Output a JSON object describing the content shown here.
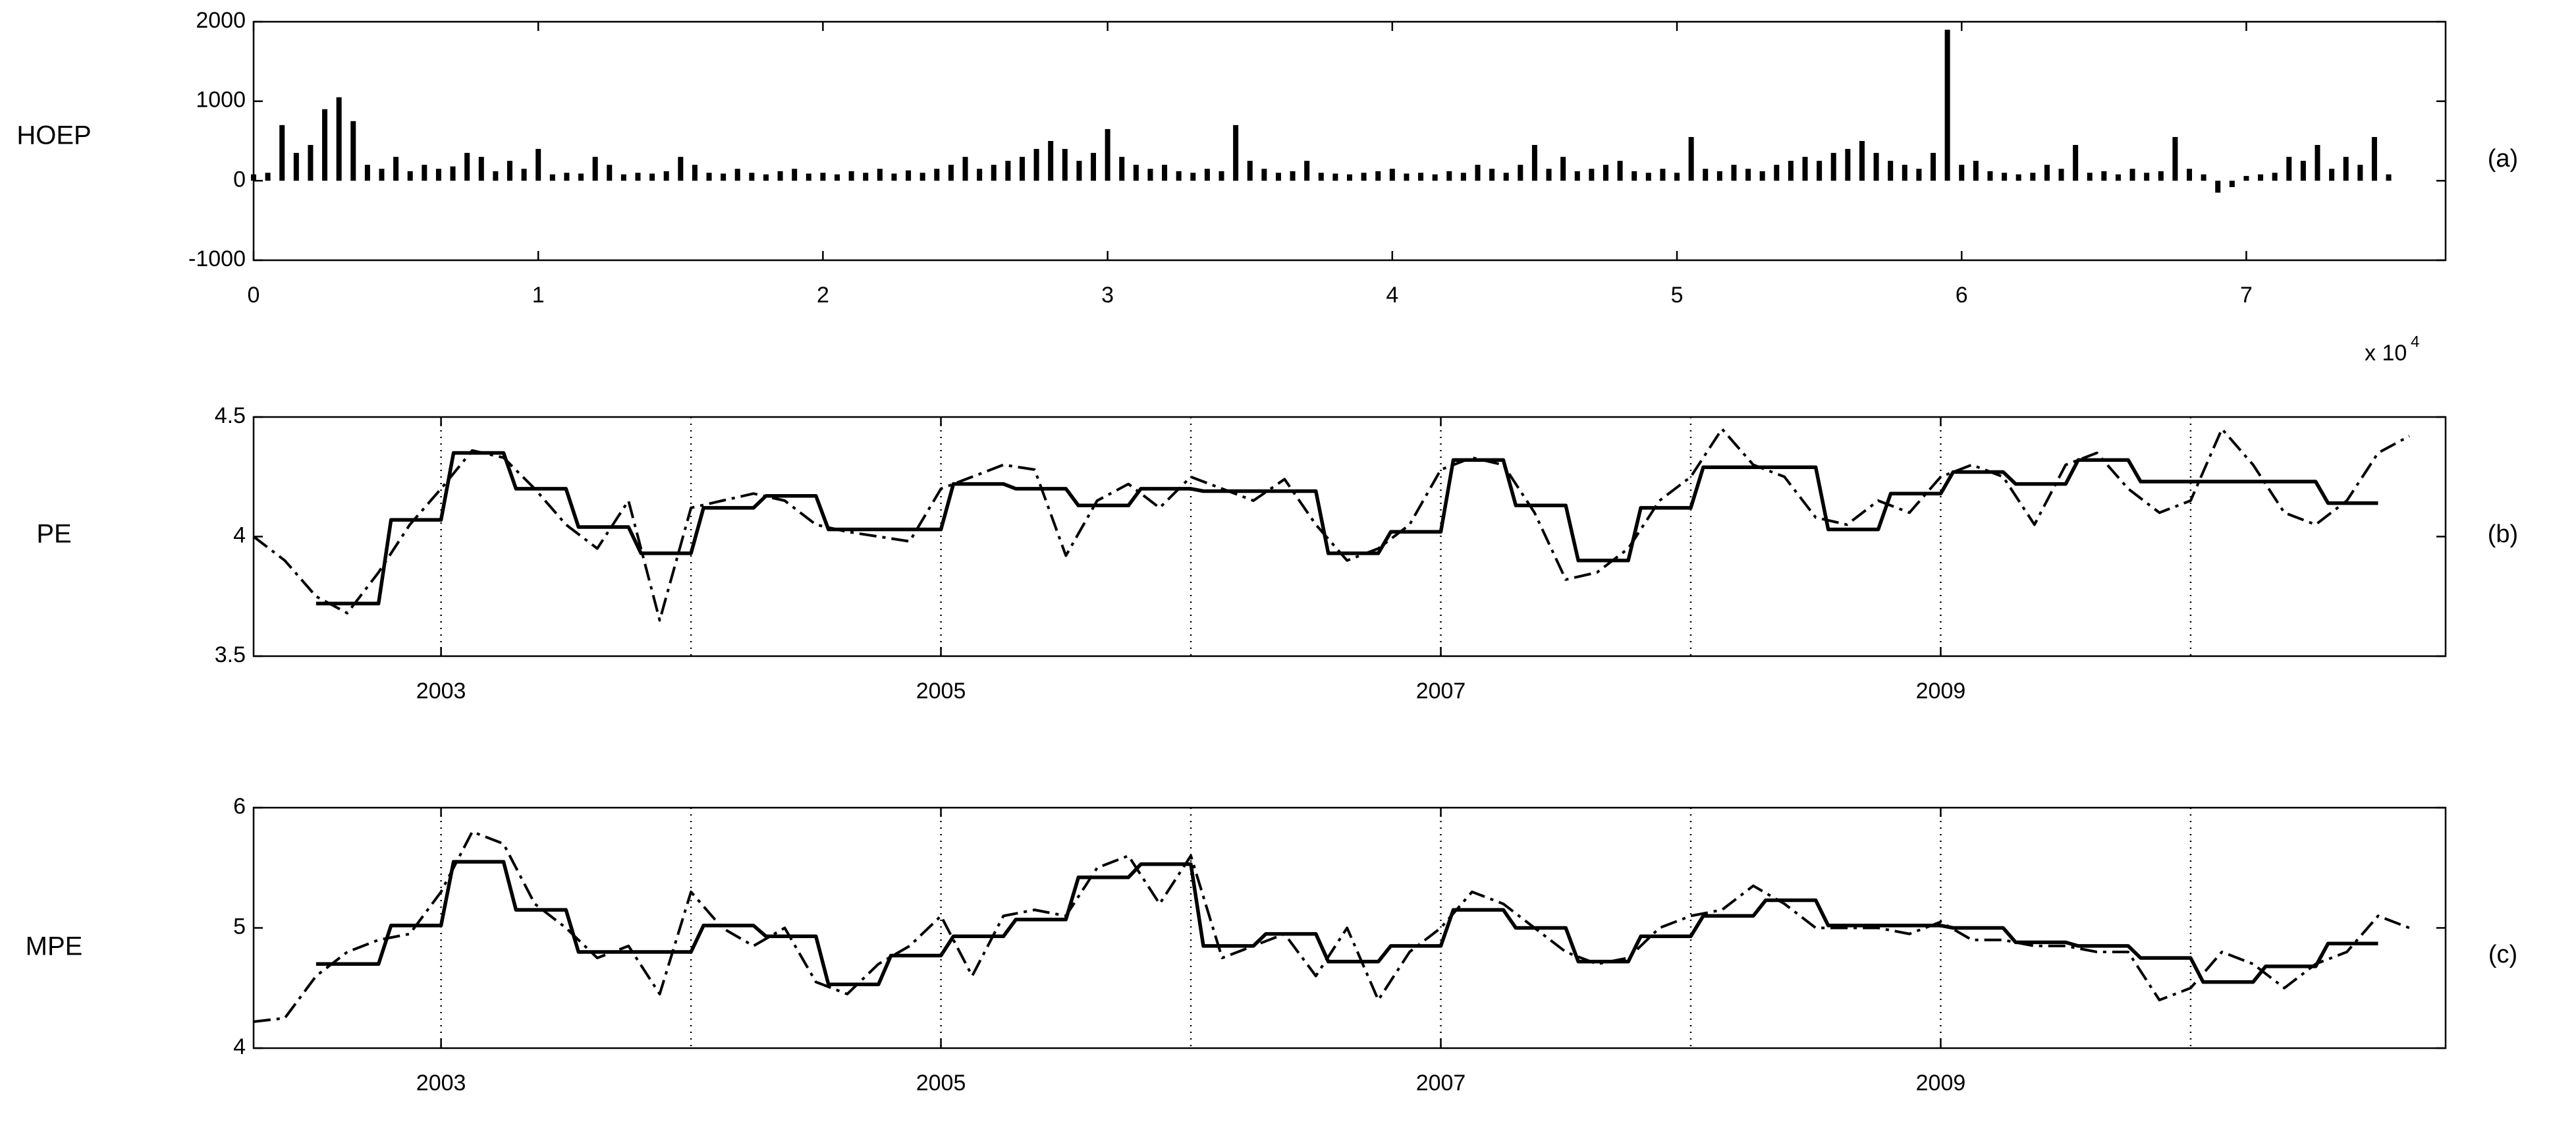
{
  "chart_data": [
    {
      "type": "bar",
      "ylabel": "HOEP",
      "tag": "(a)",
      "color": "#000000",
      "multiplier_label": "x 10",
      "multiplier_exponent": "4",
      "xlim": [
        0,
        7.7
      ],
      "xticks": [
        0,
        1,
        2,
        3,
        4,
        5,
        6,
        7
      ],
      "ylim": [
        -1000,
        2000
      ],
      "yticks": [
        -1000,
        0,
        1000,
        2000
      ],
      "x": [
        0,
        0.05,
        0.1,
        0.15,
        0.2,
        0.25,
        0.3,
        0.35,
        0.4,
        0.45,
        0.5,
        0.55,
        0.6,
        0.65,
        0.7,
        0.75,
        0.8,
        0.85,
        0.9,
        0.95,
        1.0,
        1.05,
        1.1,
        1.15,
        1.2,
        1.25,
        1.3,
        1.35,
        1.4,
        1.45,
        1.5,
        1.55,
        1.6,
        1.65,
        1.7,
        1.75,
        1.8,
        1.85,
        1.9,
        1.95,
        2.0,
        2.05,
        2.1,
        2.15,
        2.2,
        2.25,
        2.3,
        2.35,
        2.4,
        2.45,
        2.5,
        2.55,
        2.6,
        2.65,
        2.7,
        2.75,
        2.8,
        2.85,
        2.9,
        2.95,
        3.0,
        3.05,
        3.1,
        3.15,
        3.2,
        3.25,
        3.3,
        3.35,
        3.4,
        3.45,
        3.5,
        3.55,
        3.6,
        3.65,
        3.7,
        3.75,
        3.8,
        3.85,
        3.9,
        3.95,
        4.0,
        4.05,
        4.1,
        4.15,
        4.2,
        4.25,
        4.3,
        4.35,
        4.4,
        4.45,
        4.5,
        4.55,
        4.6,
        4.65,
        4.7,
        4.75,
        4.8,
        4.85,
        4.9,
        4.95,
        5.0,
        5.05,
        5.1,
        5.15,
        5.2,
        5.25,
        5.3,
        5.35,
        5.4,
        5.45,
        5.5,
        5.55,
        5.6,
        5.65,
        5.7,
        5.75,
        5.8,
        5.85,
        5.9,
        5.95,
        6.0,
        6.05,
        6.1,
        6.15,
        6.2,
        6.25,
        6.3,
        6.35,
        6.4,
        6.45,
        6.5,
        6.55,
        6.6,
        6.65,
        6.7,
        6.75,
        6.8,
        6.85,
        6.9,
        6.95,
        7.0,
        7.05,
        7.1,
        7.15,
        7.2,
        7.25,
        7.3,
        7.35,
        7.4,
        7.45,
        7.5
      ],
      "values": [
        80,
        100,
        700,
        350,
        450,
        900,
        1050,
        750,
        200,
        150,
        300,
        120,
        200,
        150,
        180,
        350,
        300,
        120,
        250,
        150,
        400,
        80,
        100,
        90,
        300,
        200,
        80,
        100,
        90,
        120,
        300,
        200,
        100,
        90,
        150,
        100,
        80,
        120,
        150,
        90,
        100,
        80,
        120,
        100,
        150,
        90,
        130,
        100,
        150,
        200,
        300,
        150,
        200,
        250,
        300,
        400,
        500,
        400,
        250,
        350,
        650,
        300,
        200,
        150,
        200,
        120,
        100,
        150,
        120,
        700,
        250,
        150,
        100,
        120,
        250,
        100,
        90,
        80,
        100,
        120,
        150,
        90,
        100,
        80,
        120,
        100,
        200,
        150,
        100,
        200,
        450,
        150,
        300,
        120,
        150,
        200,
        250,
        120,
        100,
        150,
        100,
        550,
        150,
        120,
        200,
        150,
        120,
        200,
        250,
        300,
        250,
        350,
        400,
        500,
        350,
        250,
        200,
        150,
        350,
        1900,
        200,
        250,
        120,
        100,
        80,
        100,
        200,
        150,
        450,
        100,
        120,
        80,
        150,
        100,
        120,
        550,
        150,
        80,
        -150,
        -80,
        60,
        80,
        100,
        300,
        250,
        450,
        150,
        300,
        200,
        550,
        80
      ]
    },
    {
      "type": "line",
      "ylabel": "PE",
      "tag": "(b)",
      "xlim": [
        2002.25,
        2011.02
      ],
      "xticks": [
        2003,
        2005,
        2007,
        2009
      ],
      "vlines": [
        2003,
        2004,
        2005,
        2006,
        2007,
        2008,
        2009,
        2010
      ],
      "ylim": [
        3.5,
        4.5
      ],
      "yticks": [
        3.5,
        4,
        4.5
      ],
      "series": [
        {
          "color": "#000000",
          "style": "solid",
          "x": [
            2002.5,
            2002.75,
            2002.8,
            2003.0,
            2003.05,
            2003.25,
            2003.3,
            2003.5,
            2003.55,
            2003.75,
            2003.8,
            2004.0,
            2004.05,
            2004.25,
            2004.3,
            2004.5,
            2004.55,
            2005.0,
            2005.05,
            2005.25,
            2005.3,
            2005.5,
            2005.55,
            2005.75,
            2005.8,
            2006.0,
            2006.05,
            2006.5,
            2006.55,
            2006.75,
            2006.8,
            2007.0,
            2007.05,
            2007.25,
            2007.3,
            2007.5,
            2007.55,
            2007.75,
            2007.8,
            2008.0,
            2008.05,
            2008.5,
            2008.55,
            2008.75,
            2008.8,
            2009.0,
            2009.05,
            2009.25,
            2009.3,
            2009.5,
            2009.55,
            2009.75,
            2009.8,
            2010.5,
            2010.55,
            2010.75
          ],
          "values": [
            3.72,
            3.72,
            4.07,
            4.07,
            4.35,
            4.35,
            4.2,
            4.2,
            4.04,
            4.04,
            3.93,
            3.93,
            4.12,
            4.12,
            4.17,
            4.17,
            4.03,
            4.03,
            4.22,
            4.22,
            4.2,
            4.2,
            4.13,
            4.13,
            4.2,
            4.2,
            4.19,
            4.19,
            3.93,
            3.93,
            4.02,
            4.02,
            4.32,
            4.32,
            4.13,
            4.13,
            3.9,
            3.9,
            4.12,
            4.12,
            4.29,
            4.29,
            4.03,
            4.03,
            4.18,
            4.18,
            4.27,
            4.27,
            4.22,
            4.22,
            4.32,
            4.32,
            4.23,
            4.23,
            4.14,
            4.14
          ]
        },
        {
          "color": "#000000",
          "style": "dashdot",
          "x": [
            2002.25,
            2002.375,
            2002.5,
            2002.625,
            2002.75,
            2002.875,
            2003.0,
            2003.125,
            2003.25,
            2003.375,
            2003.5,
            2003.625,
            2003.75,
            2003.875,
            2004.0,
            2004.125,
            2004.25,
            2004.375,
            2004.5,
            2004.625,
            2004.75,
            2004.875,
            2005.0,
            2005.125,
            2005.25,
            2005.375,
            2005.5,
            2005.625,
            2005.75,
            2005.875,
            2006.0,
            2006.125,
            2006.25,
            2006.375,
            2006.5,
            2006.625,
            2006.75,
            2006.875,
            2007.0,
            2007.125,
            2007.25,
            2007.375,
            2007.5,
            2007.625,
            2007.75,
            2007.875,
            2008.0,
            2008.125,
            2008.25,
            2008.375,
            2008.5,
            2008.625,
            2008.75,
            2008.875,
            2009.0,
            2009.125,
            2009.25,
            2009.375,
            2009.5,
            2009.625,
            2009.75,
            2009.875,
            2010.0,
            2010.125,
            2010.25,
            2010.375,
            2010.5,
            2010.625,
            2010.75,
            2010.875
          ],
          "values": [
            4.0,
            3.9,
            3.75,
            3.68,
            3.85,
            4.05,
            4.2,
            4.36,
            4.33,
            4.2,
            4.05,
            3.95,
            4.15,
            3.65,
            4.12,
            4.15,
            4.18,
            4.15,
            4.05,
            4.02,
            4.0,
            3.98,
            4.2,
            4.25,
            4.3,
            4.28,
            3.92,
            4.15,
            4.22,
            4.12,
            4.25,
            4.2,
            4.15,
            4.24,
            4.05,
            3.9,
            3.95,
            4.05,
            4.28,
            4.33,
            4.3,
            4.1,
            3.82,
            3.85,
            3.95,
            4.15,
            4.25,
            4.45,
            4.3,
            4.25,
            4.08,
            4.05,
            4.15,
            4.1,
            4.25,
            4.3,
            4.25,
            4.05,
            4.3,
            4.35,
            4.2,
            4.1,
            4.15,
            4.45,
            4.3,
            4.1,
            4.05,
            4.15,
            4.35,
            4.42
          ]
        }
      ]
    },
    {
      "type": "line",
      "ylabel": "MPE",
      "tag": "(c)",
      "xlim": [
        2002.25,
        2011.02
      ],
      "xticks": [
        2003,
        2005,
        2007,
        2009
      ],
      "vlines": [
        2003,
        2004,
        2005,
        2006,
        2007,
        2008,
        2009,
        2010
      ],
      "ylim": [
        4,
        6
      ],
      "yticks": [
        4,
        5,
        6
      ],
      "series": [
        {
          "color": "#000000",
          "style": "solid",
          "x": [
            2002.5,
            2002.75,
            2002.8,
            2003.0,
            2003.05,
            2003.25,
            2003.3,
            2003.5,
            2003.55,
            2004.0,
            2004.05,
            2004.25,
            2004.3,
            2004.5,
            2004.55,
            2004.75,
            2004.8,
            2005.0,
            2005.05,
            2005.25,
            2005.3,
            2005.5,
            2005.55,
            2005.75,
            2005.8,
            2006.0,
            2006.05,
            2006.25,
            2006.3,
            2006.5,
            2006.55,
            2006.75,
            2006.8,
            2007.0,
            2007.05,
            2007.25,
            2007.3,
            2007.5,
            2007.55,
            2007.75,
            2007.8,
            2008.0,
            2008.05,
            2008.25,
            2008.3,
            2008.5,
            2008.55,
            2009.0,
            2009.05,
            2009.25,
            2009.3,
            2009.5,
            2009.55,
            2009.75,
            2009.8,
            2010.0,
            2010.05,
            2010.25,
            2010.3,
            2010.5,
            2010.55,
            2010.75
          ],
          "values": [
            4.7,
            4.7,
            5.02,
            5.02,
            5.55,
            5.55,
            5.15,
            5.15,
            4.8,
            4.8,
            5.02,
            5.02,
            4.93,
            4.93,
            4.53,
            4.53,
            4.77,
            4.77,
            4.93,
            4.93,
            5.07,
            5.07,
            5.42,
            5.42,
            5.53,
            5.53,
            4.85,
            4.85,
            4.95,
            4.95,
            4.72,
            4.72,
            4.85,
            4.85,
            5.15,
            5.15,
            5.0,
            5.0,
            4.72,
            4.72,
            4.93,
            4.93,
            5.1,
            5.1,
            5.23,
            5.23,
            5.02,
            5.02,
            5.0,
            5.0,
            4.88,
            4.88,
            4.85,
            4.85,
            4.75,
            4.75,
            4.55,
            4.55,
            4.68,
            4.68,
            4.87,
            4.87
          ]
        },
        {
          "color": "#000000",
          "style": "dashdot",
          "x": [
            2002.25,
            2002.375,
            2002.5,
            2002.625,
            2002.75,
            2002.875,
            2003.0,
            2003.125,
            2003.25,
            2003.375,
            2003.5,
            2003.625,
            2003.75,
            2003.875,
            2004.0,
            2004.125,
            2004.25,
            2004.375,
            2004.5,
            2004.625,
            2004.75,
            2004.875,
            2005.0,
            2005.125,
            2005.25,
            2005.375,
            2005.5,
            2005.625,
            2005.75,
            2005.875,
            2006.0,
            2006.125,
            2006.25,
            2006.375,
            2006.5,
            2006.625,
            2006.75,
            2006.875,
            2007.0,
            2007.125,
            2007.25,
            2007.375,
            2007.5,
            2007.625,
            2007.75,
            2007.875,
            2008.0,
            2008.125,
            2008.25,
            2008.375,
            2008.5,
            2008.625,
            2008.75,
            2008.875,
            2009.0,
            2009.125,
            2009.25,
            2009.375,
            2009.5,
            2009.625,
            2009.75,
            2009.875,
            2010.0,
            2010.125,
            2010.25,
            2010.375,
            2010.5,
            2010.625,
            2010.75,
            2010.875
          ],
          "values": [
            4.22,
            4.25,
            4.6,
            4.8,
            4.9,
            4.95,
            5.3,
            5.8,
            5.7,
            5.2,
            5.0,
            4.75,
            4.85,
            4.45,
            5.3,
            5.0,
            4.85,
            5.0,
            4.55,
            4.45,
            4.7,
            4.85,
            5.1,
            4.6,
            5.1,
            5.15,
            5.1,
            5.5,
            5.6,
            5.2,
            5.6,
            4.75,
            4.85,
            4.95,
            4.6,
            5.0,
            4.4,
            4.8,
            5.0,
            5.3,
            5.2,
            5.0,
            4.8,
            4.7,
            4.75,
            5.0,
            5.1,
            5.15,
            5.35,
            5.2,
            5.0,
            5.0,
            5.0,
            4.95,
            5.05,
            4.9,
            4.9,
            4.85,
            4.85,
            4.8,
            4.8,
            4.4,
            4.5,
            4.8,
            4.7,
            4.5,
            4.7,
            4.8,
            5.1,
            5.0
          ]
        }
      ]
    }
  ]
}
